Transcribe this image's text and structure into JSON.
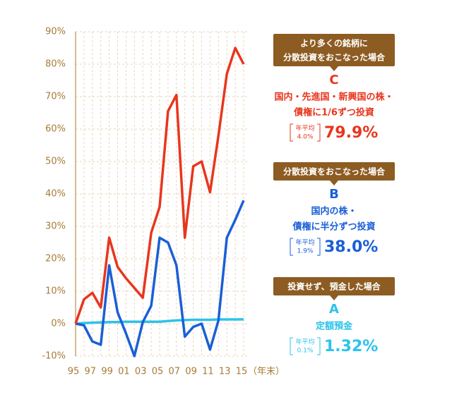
{
  "chart_data": {
    "type": "line",
    "categories": [
      "95",
      null,
      "97",
      null,
      "99",
      null,
      "01",
      null,
      "03",
      null,
      "05",
      null,
      "07",
      null,
      "09",
      null,
      "11",
      null,
      "13",
      null,
      "15"
    ],
    "x_label": "（年末）",
    "ylim": [
      -10,
      90
    ],
    "yticks": [
      {
        "value": -10,
        "label": "-10%"
      },
      {
        "value": 0,
        "label": "0%"
      },
      {
        "value": 10,
        "label": "10%"
      },
      {
        "value": 20,
        "label": "20%"
      },
      {
        "value": 30,
        "label": "30%"
      },
      {
        "value": 40,
        "label": "40%"
      },
      {
        "value": 50,
        "label": "50%"
      },
      {
        "value": 60,
        "label": "60%"
      },
      {
        "value": 70,
        "label": "70%"
      },
      {
        "value": 80,
        "label": "80%"
      },
      {
        "value": 90,
        "label": "90%"
      }
    ],
    "grid": true,
    "series": [
      {
        "name": "C",
        "color": "#e8361e",
        "values": [
          0,
          7.5,
          9.5,
          5,
          26.5,
          17.5,
          14,
          11,
          8,
          28,
          36,
          65.5,
          70.5,
          26.5,
          48.5,
          50,
          40.5,
          58,
          77,
          85,
          80
        ],
        "note": [
          "より多くの銘柄に",
          "分散投資をおこなった場合"
        ],
        "description": [
          "国内・先進国・新興国の株・",
          "債権に1/6ずつ投資"
        ],
        "avg_label": "年平均",
        "avg": "4.0%",
        "total": "79.9%"
      },
      {
        "name": "B",
        "color": "#1a5fd6",
        "values": [
          0,
          -0.5,
          -5.5,
          -6.5,
          18,
          3.5,
          -3,
          -10,
          0.5,
          5.5,
          26.5,
          25,
          18,
          -4,
          -1,
          0,
          -8,
          1,
          26.5,
          32,
          38
        ],
        "note": [
          "分散投資をおこなった場合"
        ],
        "description": [
          "国内の株・",
          "債権に半分ずつ投資"
        ],
        "avg_label": "年平均",
        "avg": "1.9%",
        "total": "38.0%"
      },
      {
        "name": "A",
        "color": "#2cc3ea",
        "values": [
          0,
          0.2,
          0.3,
          0.4,
          0.5,
          0.5,
          0.6,
          0.6,
          0.6,
          0.6,
          0.6,
          0.8,
          1.0,
          1.1,
          1.2,
          1.2,
          1.2,
          1.3,
          1.3,
          1.3,
          1.32
        ],
        "note": [
          "投資せず、預金した場合"
        ],
        "description": [
          "定額預金"
        ],
        "avg_label": "年平均",
        "avg": "0.1%",
        "total": "1.32%"
      }
    ]
  }
}
